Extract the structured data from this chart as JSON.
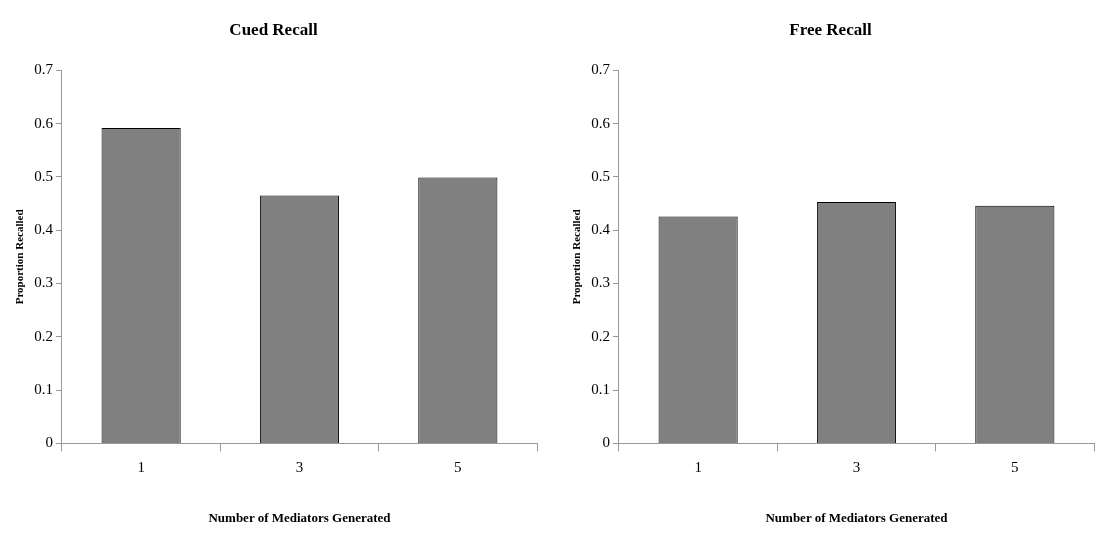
{
  "chart_data": [
    {
      "type": "bar",
      "title": "Cued Recall",
      "xlabel": "Number of Mediators Generated",
      "ylabel": "Proportion Recalled",
      "categories": [
        "1",
        "3",
        "5"
      ],
      "values": [
        0.592,
        0.465,
        0.499
      ],
      "color": "#808080",
      "ylim": [
        0,
        0.7
      ],
      "yticks": [
        0,
        0.1,
        0.2,
        0.3,
        0.4,
        0.5,
        0.6,
        0.7
      ],
      "grid": false,
      "legend": false
    },
    {
      "type": "bar",
      "title": "Free Recall",
      "xlabel": "Number of Mediators Generated",
      "ylabel": "Proportion Recalled",
      "categories": [
        "1",
        "3",
        "5"
      ],
      "values": [
        0.426,
        0.453,
        0.446
      ],
      "color": "#808080",
      "ylim": [
        0,
        0.7
      ],
      "yticks": [
        0,
        0.1,
        0.2,
        0.3,
        0.4,
        0.5,
        0.6,
        0.7
      ],
      "grid": false,
      "legend": false
    }
  ]
}
